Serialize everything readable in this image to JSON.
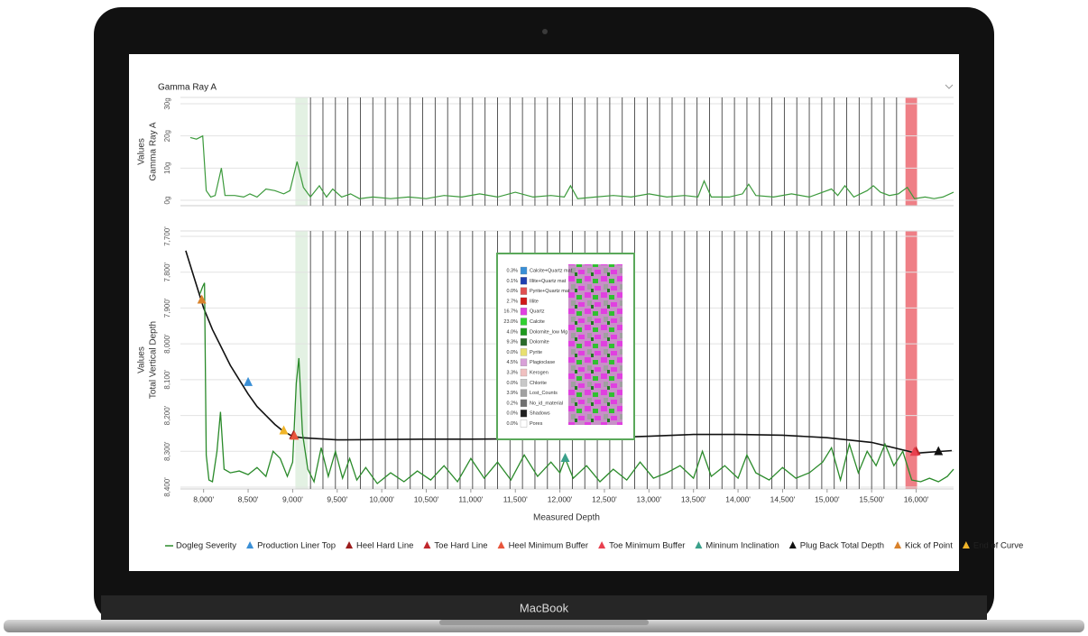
{
  "device": {
    "label": "MacBook"
  },
  "chart_data": [
    {
      "type": "line",
      "title": "Gamma Ray A",
      "ylabel": [
        "Values",
        "Gamma Ray A"
      ],
      "color": "#3c9a3c",
      "grid": true,
      "xlim": [
        7740,
        16420
      ],
      "ylim": [
        0,
        30
      ],
      "yticks": [
        {
          "value": 0,
          "label": "0g"
        },
        {
          "value": 10,
          "label": "10g"
        },
        {
          "value": 20,
          "label": "20g"
        },
        {
          "value": 30,
          "label": "30g"
        }
      ],
      "x": [
        7850,
        7920,
        7990,
        8030,
        8080,
        8130,
        8200,
        8240,
        8350,
        8450,
        8520,
        8600,
        8700,
        8800,
        8900,
        8970,
        9050,
        9120,
        9200,
        9300,
        9380,
        9450,
        9550,
        9650,
        9750,
        9900,
        10100,
        10300,
        10500,
        10700,
        10900,
        11100,
        11300,
        11500,
        11700,
        11900,
        12050,
        12120,
        12200,
        12400,
        12600,
        12800,
        13000,
        13200,
        13400,
        13550,
        13620,
        13700,
        13900,
        14050,
        14120,
        14200,
        14400,
        14600,
        14800,
        14950,
        15050,
        15120,
        15200,
        15300,
        15450,
        15520,
        15600,
        15700,
        15800,
        15900,
        15980,
        16100,
        16200,
        16300,
        16420
      ],
      "values": [
        19.5,
        19,
        20,
        3,
        1,
        1.5,
        10,
        1.5,
        1.5,
        1,
        2,
        1,
        3.5,
        3,
        2,
        3,
        12,
        4,
        1,
        4.5,
        1,
        3.5,
        1,
        2,
        0.5,
        1,
        0.5,
        1,
        0.5,
        1.5,
        1,
        2,
        1,
        2.5,
        1,
        1.5,
        1,
        4.5,
        0.5,
        1,
        1.5,
        1,
        2,
        1,
        1.5,
        1,
        6,
        1,
        1,
        2,
        5,
        1.5,
        1,
        2,
        1,
        2.5,
        3.5,
        1.5,
        4.5,
        1,
        3,
        4.5,
        2.5,
        1.5,
        2,
        4,
        0.5,
        1,
        0.5,
        1,
        2.5
      ],
      "vlines": [
        9200,
        9340,
        9480,
        9620,
        9760,
        9900,
        10040,
        10180,
        10320,
        10460,
        10600,
        10740,
        10880,
        11020,
        11160,
        11300,
        11440,
        11580,
        11720,
        11860,
        12000,
        12140,
        12280,
        12420,
        12560,
        12700,
        12840,
        12980,
        13120,
        13260,
        13400,
        13540,
        13680,
        13820,
        13960,
        14100,
        14240,
        14380,
        14520,
        14660,
        14800,
        14940,
        15080,
        15220,
        15360,
        15500,
        15640,
        15780
      ],
      "bands": [
        {
          "x0": 9030,
          "x1": 9170,
          "color": "#e3f1e3"
        },
        {
          "x0": 15880,
          "x1": 16010,
          "color": "#ef7f86"
        }
      ]
    },
    {
      "type": "line",
      "ylabel": [
        "Values",
        "Total Vertical Depth"
      ],
      "xlabel": "Measured Depth",
      "grid": true,
      "xlim": [
        7740,
        16420
      ],
      "ylim": [
        8400,
        7700
      ],
      "yticks": [
        {
          "value": 7700,
          "label": "7,700'"
        },
        {
          "value": 7800,
          "label": "7,800'"
        },
        {
          "value": 7900,
          "label": "7,900'"
        },
        {
          "value": 8000,
          "label": "8,000'"
        },
        {
          "value": 8100,
          "label": "8,100'"
        },
        {
          "value": 8200,
          "label": "8,200'"
        },
        {
          "value": 8300,
          "label": "8,300'"
        },
        {
          "value": 8400,
          "label": "8,400'"
        }
      ],
      "xticks": [
        {
          "value": 8000,
          "label": "8,000'"
        },
        {
          "value": 8500,
          "label": "8,500'"
        },
        {
          "value": 9000,
          "label": "9,000'"
        },
        {
          "value": 9500,
          "label": "9,500'"
        },
        {
          "value": 10000,
          "label": "10,000'"
        },
        {
          "value": 10500,
          "label": "10,500'"
        },
        {
          "value": 11000,
          "label": "11,000'"
        },
        {
          "value": 11500,
          "label": "11,500'"
        },
        {
          "value": 12000,
          "label": "12,000'"
        },
        {
          "value": 12500,
          "label": "12,500'"
        },
        {
          "value": 13000,
          "label": "13,000'"
        },
        {
          "value": 13500,
          "label": "13,500'"
        },
        {
          "value": 14000,
          "label": "14,000'"
        },
        {
          "value": 14500,
          "label": "14,500'"
        },
        {
          "value": 15000,
          "label": "15,000'"
        },
        {
          "value": 15500,
          "label": "15,500'"
        },
        {
          "value": 16000,
          "label": "16,000'"
        }
      ],
      "vlines": [
        9200,
        9340,
        9480,
        9620,
        9760,
        9900,
        10040,
        10180,
        10320,
        10460,
        10600,
        10740,
        10880,
        11020,
        11160,
        11300,
        11440,
        11580,
        11720,
        11860,
        12000,
        12140,
        12280,
        12420,
        12560,
        12700,
        12840,
        12980,
        13120,
        13260,
        13400,
        13540,
        13680,
        13820,
        13960,
        14100,
        14240,
        14380,
        14520,
        14660,
        14800,
        14940,
        15080,
        15220,
        15360,
        15500,
        15640,
        15780
      ],
      "bands": [
        {
          "x0": 9030,
          "x1": 9170,
          "color": "#e3f1e3"
        },
        {
          "x0": 15880,
          "x1": 16010,
          "color": "#ef7f86"
        }
      ],
      "series": [
        {
          "color": "#111111",
          "x": [
            7800,
            7900,
            8000,
            8100,
            8200,
            8300,
            8400,
            8500,
            8600,
            8700,
            8800,
            8900,
            9000,
            9100,
            9500,
            10000,
            10500,
            11000,
            11500,
            12000,
            12500,
            13000,
            13500,
            14000,
            14500,
            15000,
            15500,
            16000,
            16400
          ],
          "values": [
            7740,
            7820,
            7900,
            7960,
            8010,
            8060,
            8100,
            8140,
            8175,
            8200,
            8225,
            8245,
            8258,
            8262,
            8268,
            8267,
            8266,
            8266,
            8265,
            8263,
            8262,
            8258,
            8253,
            8253,
            8255,
            8262,
            8275,
            8305,
            8298
          ]
        },
        {
          "name": "Dogleg Severity",
          "color": "#2a8a2a",
          "x": [
            7960,
            7990,
            8010,
            8030,
            8060,
            8100,
            8150,
            8190,
            8230,
            8300,
            8400,
            8500,
            8600,
            8700,
            8780,
            8860,
            8940,
            9000,
            9040,
            9070,
            9110,
            9170,
            9240,
            9320,
            9400,
            9480,
            9560,
            9640,
            9720,
            9820,
            9950,
            10100,
            10250,
            10400,
            10550,
            10700,
            10850,
            11000,
            11150,
            11300,
            11450,
            11600,
            11750,
            11900,
            12000,
            12060,
            12150,
            12300,
            12450,
            12600,
            12750,
            12900,
            13050,
            13200,
            13350,
            13500,
            13600,
            13700,
            13850,
            14000,
            14100,
            14200,
            14350,
            14500,
            14650,
            14800,
            14950,
            15050,
            15150,
            15250,
            15350,
            15450,
            15550,
            15650,
            15750,
            15850,
            15950,
            16050,
            16150,
            16250,
            16350,
            16420
          ],
          "values": [
            7860,
            7840,
            7830,
            8310,
            8380,
            8385,
            8300,
            8190,
            8350,
            8360,
            8355,
            8365,
            8345,
            8370,
            8300,
            8320,
            8370,
            8330,
            8110,
            8040,
            8250,
            8350,
            8385,
            8290,
            8370,
            8300,
            8375,
            8320,
            8380,
            8345,
            8390,
            8360,
            8385,
            8355,
            8380,
            8340,
            8385,
            8320,
            8375,
            8330,
            8380,
            8310,
            8370,
            8330,
            8360,
            8320,
            8375,
            8340,
            8385,
            8350,
            8380,
            8330,
            8375,
            8360,
            8340,
            8375,
            8300,
            8370,
            8340,
            8375,
            8310,
            8360,
            8380,
            8345,
            8375,
            8360,
            8330,
            8290,
            8380,
            8280,
            8360,
            8300,
            8340,
            8280,
            8340,
            8300,
            8380,
            8385,
            8375,
            8385,
            8370,
            8350
          ]
        },
        {
          "name": "Production Liner Top",
          "marker": "triangle",
          "color": "#3a8fd6",
          "x": [
            8500
          ],
          "values": [
            8110
          ]
        },
        {
          "name": "Heel Hard Line",
          "marker": "triangle",
          "color": "#9b1c1c",
          "x": [
            9010
          ],
          "values": [
            8258
          ]
        },
        {
          "name": "Toe Hard Line",
          "marker": "triangle",
          "color": "#c0262b",
          "x": [
            16000
          ],
          "values": [
            8303
          ]
        },
        {
          "name": "Heel Minimum Buffer",
          "marker": "triangle",
          "color": "#e8553b",
          "x": [
            9020
          ],
          "values": [
            8260
          ]
        },
        {
          "name": "Toe Minimum Buffer",
          "marker": "triangle",
          "color": "#e8404f",
          "x": [
            15980
          ],
          "values": [
            8305
          ]
        },
        {
          "name": "Mininum Inclination",
          "marker": "triangle",
          "color": "#3aa08a",
          "x": [
            12060
          ],
          "values": [
            8322
          ]
        },
        {
          "name": "Plug Back Total Depth",
          "marker": "triangle",
          "color": "#111111",
          "x": [
            16250
          ],
          "values": [
            8303
          ]
        },
        {
          "name": "Kick of Point",
          "marker": "triangle",
          "color": "#d9822b",
          "x": [
            7980
          ],
          "values": [
            7880
          ]
        },
        {
          "name": "End of Curve",
          "marker": "triangle",
          "color": "#f0b429",
          "x": [
            8900
          ],
          "values": [
            8245
          ]
        }
      ]
    }
  ],
  "tooltip": {
    "rows": [
      {
        "percent": "0.3%",
        "label": "Calcite+Quartz mat",
        "color": "#3a8fd6"
      },
      {
        "percent": "0.1%",
        "label": "Illite+Quartz mat",
        "color": "#1f3fb0"
      },
      {
        "percent": "0.0%",
        "label": "Pyrite+Quartz mat",
        "color": "#e05050"
      },
      {
        "percent": "2.7%",
        "label": "Illite",
        "color": "#d01818"
      },
      {
        "percent": "16.7%",
        "label": "Quartz",
        "color": "#e040e0"
      },
      {
        "percent": "23.0%",
        "label": "Calcite",
        "color": "#30d030"
      },
      {
        "percent": "4.0%",
        "label": "Dolomite_low Mg",
        "color": "#1e9a1e"
      },
      {
        "percent": "9.3%",
        "label": "Dolomite",
        "color": "#2a6a2a"
      },
      {
        "percent": "0.0%",
        "label": "Pyrite",
        "color": "#e8e070"
      },
      {
        "percent": "4.5%",
        "label": "Plagioclase",
        "color": "#d8a0d8"
      },
      {
        "percent": "3.3%",
        "label": "Kerogen",
        "color": "#f0c0c0"
      },
      {
        "percent": "0.0%",
        "label": "Chlorite",
        "color": "#c8c8c8"
      },
      {
        "percent": "3.9%",
        "label": "Lost_Counts",
        "color": "#a0a0a0"
      },
      {
        "percent": "0.2%",
        "label": "No_id_material",
        "color": "#707070"
      },
      {
        "percent": "0.0%",
        "label": "Shadows",
        "color": "#202020"
      },
      {
        "percent": "0.0%",
        "label": "Pores",
        "color": "#ffffff"
      }
    ]
  }
}
